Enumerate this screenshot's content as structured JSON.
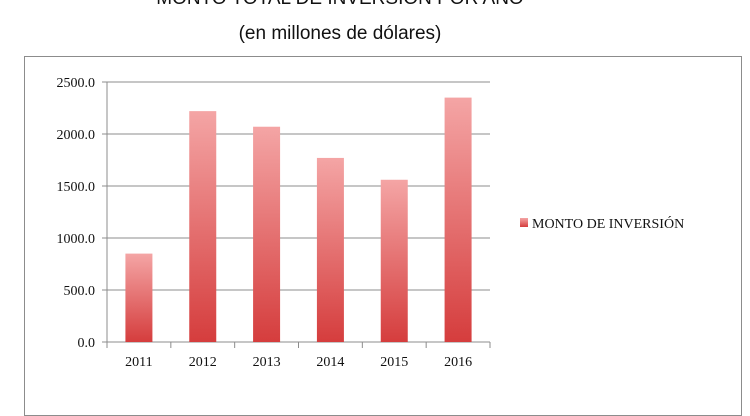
{
  "title": "MONTO TOTAL DE INVERSIÓN POR AÑO",
  "subtitle": "(en millones de dólares)",
  "colors": {
    "bar_light": "#f4a5a5",
    "bar_dark": "#d53d3d",
    "grid": "#8c8c8c",
    "axis": "#8c8c8c"
  },
  "chart_data": {
    "type": "bar",
    "title": "MONTO TOTAL DE INVERSIÓN POR AÑO",
    "subtitle": "(en millones de dólares)",
    "categories": [
      "2011",
      "2012",
      "2013",
      "2014",
      "2015",
      "2016"
    ],
    "series": [
      {
        "name": "MONTO DE INVERSIÓN",
        "values": [
          850,
          2220,
          2070,
          1770,
          1560,
          2350
        ]
      }
    ],
    "y_ticks": [
      "0.0",
      "500.0",
      "1000.0",
      "1500.0",
      "2000.0",
      "2500.0"
    ],
    "ylim": [
      0,
      2500
    ],
    "grid": true,
    "legend_position": "right"
  }
}
